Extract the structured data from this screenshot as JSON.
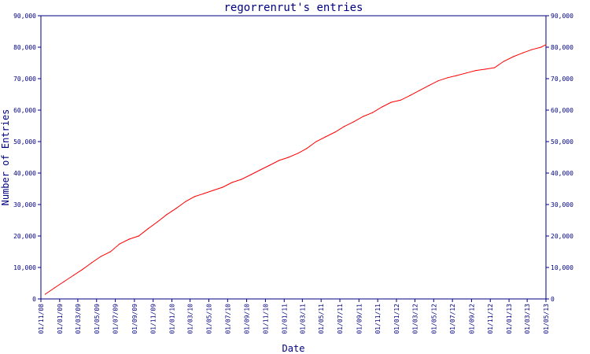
{
  "chart_data": {
    "type": "line",
    "title": "regorrenrut's entries",
    "xlabel": "Date",
    "ylabel": "Number of Entries",
    "ylim": [
      0,
      90000
    ],
    "y_ticks": [
      0,
      10000,
      20000,
      30000,
      40000,
      50000,
      60000,
      70000,
      80000,
      90000
    ],
    "y_tick_labels": [
      "0",
      "10,000",
      "20,000",
      "30,000",
      "40,000",
      "50,000",
      "60,000",
      "70,000",
      "80,000",
      "90,000"
    ],
    "x_tick_labels": [
      "01/11/08",
      "01/01/09",
      "01/03/09",
      "01/05/09",
      "01/07/09",
      "01/09/09",
      "01/11/09",
      "01/01/10",
      "01/03/10",
      "01/05/10",
      "01/07/10",
      "01/09/10",
      "01/11/10",
      "01/01/11",
      "01/03/11",
      "01/05/11",
      "01/07/11",
      "01/09/11",
      "01/11/11",
      "01/01/12",
      "01/03/12",
      "01/05/12",
      "01/07/12",
      "01/09/12",
      "01/11/12",
      "01/01/13",
      "01/03/13",
      "01/05/13"
    ],
    "xlim": [
      "2008-11-01",
      "2013-05-01"
    ],
    "grid": false,
    "line_color": "#ff0000",
    "axis_color": "#000080",
    "series": [
      {
        "x": [
          "2008-11-15",
          "2008-12-15",
          "2009-01-15",
          "2009-02-15",
          "2009-03-15",
          "2009-04-15",
          "2009-05-15",
          "2009-06-15",
          "2009-07-15",
          "2009-08-15",
          "2009-09-15",
          "2009-10-15",
          "2009-11-15",
          "2009-12-15",
          "2010-01-15",
          "2010-02-15",
          "2010-03-15",
          "2010-04-15",
          "2010-05-15",
          "2010-06-15",
          "2010-07-15",
          "2010-08-15",
          "2010-09-15",
          "2010-10-15",
          "2010-11-15",
          "2010-12-15",
          "2011-01-15",
          "2011-02-15",
          "2011-03-15",
          "2011-04-15",
          "2011-05-15",
          "2011-06-15",
          "2011-07-15",
          "2011-08-15",
          "2011-09-15",
          "2011-10-15",
          "2011-11-15",
          "2011-12-15",
          "2012-01-15",
          "2012-02-15",
          "2012-03-15",
          "2012-04-15",
          "2012-05-15",
          "2012-06-15",
          "2012-07-15",
          "2012-08-15",
          "2012-09-15",
          "2012-10-15",
          "2012-11-15",
          "2012-12-15",
          "2013-01-15",
          "2013-02-15",
          "2013-03-15",
          "2013-04-15",
          "2013-05-01"
        ],
        "values": [
          1500,
          3500,
          5500,
          7500,
          9300,
          11500,
          13500,
          15000,
          17500,
          19000,
          20000,
          22300,
          24500,
          26800,
          28800,
          31000,
          32500,
          33500,
          34500,
          35500,
          37000,
          38000,
          39500,
          41000,
          42500,
          44000,
          45000,
          46300,
          47800,
          50000,
          51500,
          53000,
          54800,
          56300,
          58000,
          59200,
          61000,
          62500,
          63200,
          64700,
          66200,
          67800,
          69300,
          70300,
          71000,
          71800,
          72600,
          73000,
          73500,
          75500,
          77000,
          78200,
          79200,
          80000,
          80800
        ]
      }
    ]
  }
}
